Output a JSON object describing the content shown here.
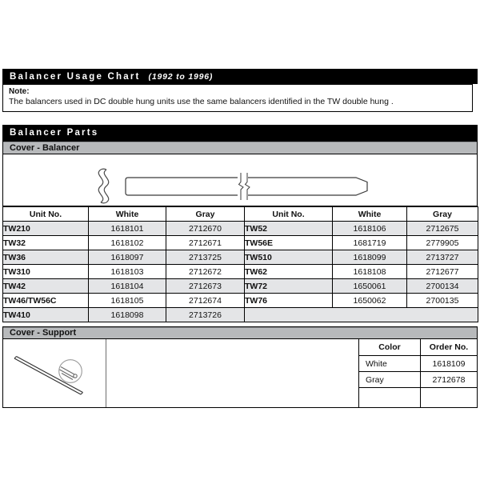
{
  "document": {
    "title_bar": {
      "title": "Balancer Usage Chart",
      "subtitle": "(1992 to 1996)"
    },
    "note": {
      "label": "Note:",
      "text": "The balancers used in DC double hung units use the same balancers identified in the TW double hung ."
    },
    "parts_bar": {
      "title": "Balancer Parts"
    }
  },
  "cover_balancer": {
    "section_title": "Cover - Balancer",
    "table": {
      "headers": [
        "Unit No.",
        "White",
        "Gray",
        "Unit No.",
        "White",
        "Gray"
      ],
      "rows": [
        [
          "TW210",
          "1618101",
          "2712670",
          "TW52",
          "1618106",
          "2712675"
        ],
        [
          "TW32",
          "1618102",
          "2712671",
          "TW56E",
          "1681719",
          "2779905"
        ],
        [
          "TW36",
          "1618097",
          "2713725",
          "TW510",
          "1618099",
          "2713727"
        ],
        [
          "TW310",
          "1618103",
          "2712672",
          "TW62",
          "1618108",
          "2712677"
        ],
        [
          "TW42",
          "1618104",
          "2712673",
          "TW72",
          "1650061",
          "2700134"
        ],
        [
          "TW46/TW56C",
          "1618105",
          "2712674",
          "TW76",
          "1650062",
          "2700135"
        ],
        [
          "TW410",
          "1618098",
          "2713726",
          "",
          "",
          ""
        ]
      ]
    }
  },
  "cover_support": {
    "section_title": "Cover - Support",
    "table": {
      "headers": [
        "Color",
        "Order No."
      ],
      "rows": [
        [
          "White",
          "1618109"
        ],
        [
          "Gray",
          "2712678"
        ]
      ]
    }
  },
  "colors": {
    "bar_background": "#000000",
    "bar_text": "#ffffff",
    "section_bar": "#b7b9bb",
    "row_shaded": "#e4e5e7",
    "border": "#000000"
  }
}
